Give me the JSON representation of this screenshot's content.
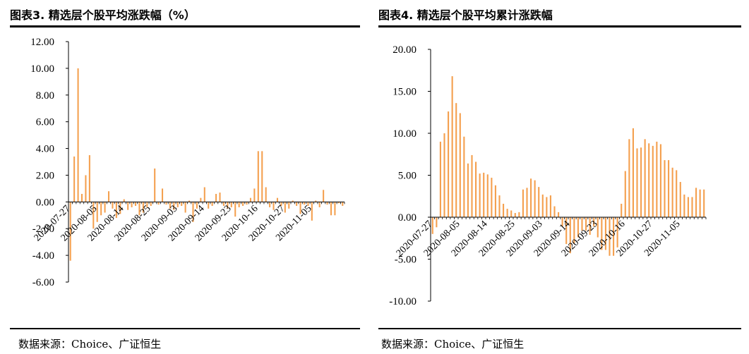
{
  "colors": {
    "bar": "#F4A04F",
    "axis": "#000000"
  },
  "source_prefix": "数据来源：",
  "source_text": "Choice、广证恒生",
  "chart_data": [
    {
      "id": "left",
      "type": "bar",
      "title": "图表3. 精选层个股平均涨跌幅（%）",
      "ylim": [
        -6,
        12
      ],
      "yticks": [
        "12.00",
        "10.00",
        "8.00",
        "6.00",
        "4.00",
        "2.00",
        "0.00",
        "-2.00",
        "-4.00",
        "-6.00"
      ],
      "ytick_values": [
        12,
        10,
        8,
        6,
        4,
        2,
        0,
        -2,
        -4,
        -6
      ],
      "x_tick_labels": [
        "2020-07-27",
        "2020-08-05",
        "2020-08-14",
        "2020-08-25",
        "2020-09-03",
        "2020-09-14",
        "2020-09-23",
        "2020-10-16",
        "2020-10-27",
        "2020-11-05"
      ],
      "x_tick_index": [
        0,
        7,
        14,
        21,
        28,
        35,
        42,
        49,
        56,
        63
      ],
      "values": [
        -4.4,
        3.4,
        10.0,
        0.6,
        2.0,
        3.5,
        -2.0,
        -1.5,
        -1.0,
        -0.8,
        0.8,
        -0.5,
        -1.2,
        -0.9,
        0.2,
        -0.6,
        -0.4,
        -0.3,
        -1.0,
        -0.8,
        -0.4,
        -0.3,
        2.5,
        -0.2,
        1.0,
        -0.2,
        -0.5,
        -0.6,
        -0.4,
        -0.3,
        -0.8,
        0.1,
        -1.5,
        -0.5,
        0.3,
        1.1,
        -0.5,
        -0.3,
        0.6,
        0.7,
        -0.3,
        -0.5,
        -0.4,
        -1.1,
        -0.4,
        -0.3,
        -0.2,
        0.3,
        1.0,
        3.8,
        3.8,
        1.1,
        -0.4,
        -0.6,
        0.3,
        -0.3,
        -0.8,
        -0.5,
        0.1,
        -0.3,
        -0.9,
        -0.2,
        -0.3,
        -1.4,
        0.1,
        -0.4,
        0.9,
        -0.2,
        -1.0,
        -1.0,
        -0.1,
        -0.3
      ]
    },
    {
      "id": "right",
      "type": "bar",
      "title": "图表4. 精选层个股平均累计涨跌幅",
      "ylim": [
        -10,
        20
      ],
      "yticks": [
        "20.00",
        "15.00",
        "10.00",
        "5.00",
        "0.00",
        "-5.00",
        "-10.00"
      ],
      "ytick_values": [
        20,
        15,
        10,
        5,
        0,
        -5,
        -10
      ],
      "x_tick_labels": [
        "2020-07-27",
        "2020-08-05",
        "2020-08-14",
        "2020-08-25",
        "2020-09-03",
        "2020-09-14",
        "2020-09-23",
        "2020-10-16",
        "2020-10-27",
        "2020-11-05"
      ],
      "x_tick_index": [
        0,
        7,
        14,
        21,
        28,
        35,
        42,
        49,
        56,
        63
      ],
      "values": [
        -2.0,
        -1.2,
        9.0,
        10.0,
        12.6,
        16.8,
        13.6,
        12.4,
        9.6,
        6.4,
        7.4,
        6.6,
        5.2,
        5.3,
        5.1,
        4.7,
        3.8,
        2.6,
        1.6,
        1.0,
        0.8,
        0.5,
        0.6,
        3.3,
        3.5,
        4.6,
        4.4,
        3.6,
        2.7,
        2.4,
        2.6,
        1.3,
        0.6,
        -1.1,
        -3.2,
        -4.3,
        -3.1,
        -2.4,
        -1.6,
        -1.6,
        -2.1,
        -1.1,
        -2.4,
        -3.9,
        -3.9,
        -4.6,
        -4.6,
        -3.6,
        1.6,
        5.5,
        9.3,
        10.6,
        8.2,
        8.3,
        9.3,
        8.8,
        8.5,
        9.0,
        8.7,
        6.8,
        6.8,
        5.9,
        5.6,
        4.2,
        2.7,
        2.4,
        2.4,
        3.5,
        3.3,
        3.3
      ]
    }
  ]
}
